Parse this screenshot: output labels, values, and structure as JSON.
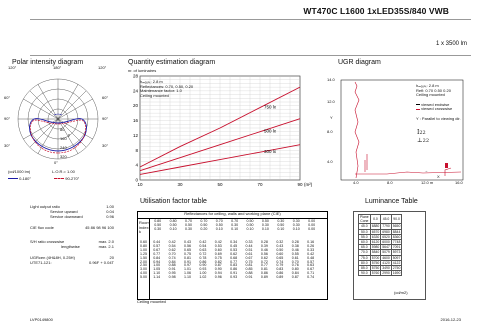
{
  "header": {
    "title": "WT470C L1600 1xLED35S/840 VWB",
    "flux": "1 x 3500 lm"
  },
  "polar": {
    "title": "Polar intensity diagram",
    "angles_top": [
      "120°",
      "180°",
      "120°"
    ],
    "angles_left": [
      "90°",
      "60°",
      "30°"
    ],
    "angles_right": [
      "90°",
      "60°",
      "30°"
    ],
    "angle_bottom": "0°",
    "lor": "L.O.R.= 1.00",
    "unit": "(cd/1000 lm)",
    "ring_labels": [
      "80",
      "160",
      "240",
      "320"
    ],
    "gamma": "γ",
    "legend": [
      {
        "label": "0-180°",
        "color": "#1a1aa6"
      },
      {
        "label": "90-270°",
        "color": "#c8102e"
      }
    ]
  },
  "quantity": {
    "title": "Quantity estimation diagram",
    "ylabel": "nr. of luminaires",
    "info": [
      "hₘₒᵤₙₜ: 2.8 m",
      "Reflectances: 0.70, 0.50, 0.20",
      "Maintenance factor: 1.0",
      "Ceiling mounted"
    ],
    "xunit": "(m²)",
    "chart_data": {
      "type": "line",
      "x": [
        10,
        30,
        50,
        70,
        90
      ],
      "xlim": [
        10,
        90
      ],
      "ylim": [
        0,
        28
      ],
      "yticks": [
        0,
        4,
        8,
        12,
        16,
        20,
        24,
        28
      ],
      "xticks": [
        10,
        30,
        50,
        70,
        90
      ],
      "series": [
        {
          "name": "300 lx",
          "values": [
            1.5,
            3.5,
            5.5,
            7.5,
            9.5
          ]
        },
        {
          "name": "500 lx",
          "values": [
            2.5,
            6.0,
            9.5,
            13.0,
            16.5
          ]
        },
        {
          "name": "750 lx",
          "values": [
            3.5,
            9.0,
            14.0,
            19.5,
            25.0
          ]
        }
      ]
    }
  },
  "ugr": {
    "title": "UGR diagram",
    "legend_lines": [
      "hₘₒᵤₙₜ: 2.8 m",
      "Refl: 0.70 0.50 0.20",
      "Ceiling mounted"
    ],
    "viewed_endwise": "viewed endwise",
    "viewed_crosswise": "viewed crosswise",
    "parallel_note": "Y : Parallel to viewing dir.",
    "ylabel": "Y",
    "xlabel": "X",
    "ytick_labels": [
      "14.0",
      "12.0",
      "8.0",
      "4.0"
    ],
    "xtick_labels": [
      "4.0",
      "8.0",
      "12.0 m",
      "16.0"
    ],
    "marker_label_1": "22",
    "marker_label_2": "22"
  },
  "specs": [
    {
      "label": "Light output ratio",
      "value": "1.00"
    },
    {
      "label": "Service upward",
      "value": "0.04"
    },
    {
      "label": "Service downward",
      "value": "0.96"
    }
  ],
  "cie": {
    "label": "CIE flux code",
    "value": "45 86 98 96 100"
  },
  "sh": [
    {
      "label": "S/H ratio   crosswise",
      "value": "max. 2.0"
    },
    {
      "label": "lengthwise",
      "value": "max. 2.1"
    }
  ],
  "ugr_values": [
    {
      "label": "UGRcen (4H&8H, 0.25H)",
      "value": "20"
    },
    {
      "label": "UTE71-121:",
      "value": "0.96F + 0.04T"
    }
  ],
  "uf": {
    "title": "Utilisation factor table",
    "head": "Reflectances for ceiling, walls and working plane (CIE)",
    "room_index_label": [
      "Room",
      "index",
      "k"
    ],
    "refl_rows": [
      [
        "0.80",
        "0.80",
        "0.70",
        "0.70",
        "0.70",
        "0.70",
        "0.50",
        "0.50",
        "0.30",
        "0.30",
        "0.00"
      ],
      [
        "0.50",
        "0.50",
        "0.50",
        "0.50",
        "0.50",
        "0.30",
        "0.50",
        "0.30",
        "0.50",
        "0.30",
        "0.00"
      ],
      [
        "0.30",
        "0.10",
        "0.30",
        "0.20",
        "0.10",
        "0.10",
        "0.10",
        "0.10",
        "0.10",
        "0.10",
        "0.00"
      ]
    ],
    "rows": [
      {
        "k": "0.60",
        "v": [
          "0.44",
          "0.42",
          "0.43",
          "0.42",
          "0.42",
          "0.34",
          "0.33",
          "0.28",
          "0.32",
          "0.28",
          "0.16"
        ]
      },
      {
        "k": "0.80",
        "v": [
          "0.57",
          "0.54",
          "0.56",
          "0.54",
          "0.53",
          "0.45",
          "0.44",
          "0.39",
          "0.43",
          "0.38",
          "0.26"
        ]
      },
      {
        "k": "1.00",
        "v": [
          "0.67",
          "0.62",
          "0.65",
          "0.63",
          "0.60",
          "0.53",
          "0.51",
          "0.46",
          "0.50",
          "0.46",
          "0.33"
        ]
      },
      {
        "k": "1.25",
        "v": [
          "0.77",
          "0.70",
          "0.75",
          "0.72",
          "0.69",
          "0.62",
          "0.61",
          "0.56",
          "0.60",
          "0.55",
          "0.42"
        ]
      },
      {
        "k": "1.50",
        "v": [
          "0.84",
          "0.74",
          "0.81",
          "0.78",
          "0.75",
          "0.68",
          "0.67",
          "0.62",
          "0.65",
          "0.61",
          "0.48"
        ]
      },
      {
        "k": "2.00",
        "v": [
          "0.94",
          "0.84",
          "0.91",
          "0.86",
          "0.82",
          "0.77",
          "0.75",
          "0.72",
          "0.74",
          "0.70",
          "0.57"
        ]
      },
      {
        "k": "2.50",
        "v": [
          "1.00",
          "0.88",
          "0.97",
          "0.90",
          "0.87",
          "0.83",
          "0.81",
          "0.77",
          "0.79",
          "0.76",
          "0.63"
        ]
      },
      {
        "k": "3.00",
        "v": [
          "1.05",
          "0.91",
          "1.01",
          "0.93",
          "0.90",
          "0.86",
          "0.85",
          "0.81",
          "0.83",
          "0.80",
          "0.67"
        ]
      },
      {
        "k": "4.00",
        "v": [
          "1.10",
          "0.95",
          "1.06",
          "1.00",
          "0.94",
          "0.91",
          "0.88",
          "0.86",
          "0.86",
          "0.84",
          "0.71"
        ]
      },
      {
        "k": "5.00",
        "v": [
          "1.14",
          "0.98",
          "1.10",
          "1.02",
          "0.96",
          "0.93",
          "0.91",
          "0.89",
          "0.89",
          "0.87",
          "0.74"
        ]
      }
    ],
    "footer": "Ceiling mounted"
  },
  "luminance": {
    "title": "Luminance Table",
    "head": [
      "Plane\nCone",
      "0.0",
      "45.0",
      "90.0"
    ],
    "rows": [
      [
        "45.0",
        "6880",
        "7790",
        "5650"
      ],
      [
        "50.0",
        "6570",
        "6980",
        "8844"
      ],
      [
        "55.0",
        "6330",
        "6520",
        "8360"
      ],
      [
        "60.0",
        "6120",
        "6000",
        "7748"
      ],
      [
        "65.0",
        "5980",
        "5647",
        "7091"
      ],
      [
        "70.0",
        "5840",
        "5079",
        "5973"
      ],
      [
        "75.0",
        "5700",
        "4600",
        "5097"
      ],
      [
        "80.0",
        "5750",
        "4120",
        "4122"
      ],
      [
        "85.0",
        "5750",
        "3490",
        "2750"
      ],
      [
        "90.0",
        "5760",
        "2990",
        "1690"
      ]
    ],
    "unit": "(cd/m2)"
  },
  "footer": {
    "code": "LVP0149800",
    "date": "2016-12-23"
  }
}
